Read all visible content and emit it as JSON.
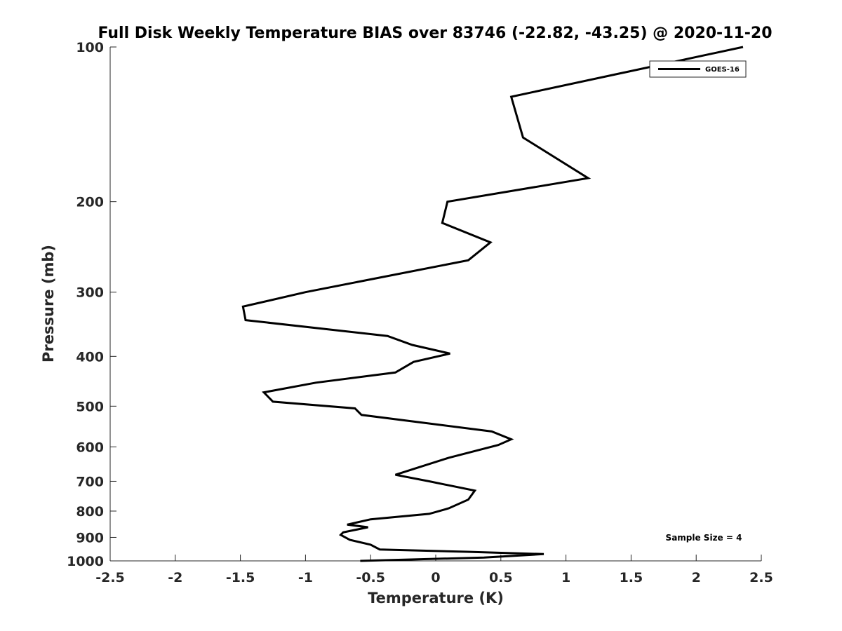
{
  "chart_data": {
    "type": "line",
    "title": "Full Disk Weekly Temperature BIAS over 83746 (-22.82, -43.25) @ 2020-11-20",
    "xlabel": "Temperature (K)",
    "ylabel": "Pressure (mb)",
    "xlim": [
      -2.5,
      2.5
    ],
    "ylim": [
      100,
      1000
    ],
    "y_scale": "log",
    "y_reversed": true,
    "x_ticks": [
      "-2.5",
      "-2",
      "-1.5",
      "-1",
      "-0.5",
      "0",
      "0.5",
      "1",
      "1.5",
      "2",
      "2.5"
    ],
    "x_tick_values": [
      -2.5,
      -2,
      -1.5,
      -1,
      -0.5,
      0,
      0.5,
      1,
      1.5,
      2,
      2.5
    ],
    "y_ticks": [
      "100",
      "200",
      "300",
      "400",
      "500",
      "600",
      "700",
      "800",
      "900",
      "1000"
    ],
    "y_tick_values": [
      100,
      200,
      300,
      400,
      500,
      600,
      700,
      800,
      900,
      1000
    ],
    "grid": false,
    "legend_position": "top-right",
    "annotation": "Sample Size = 4",
    "series": [
      {
        "name": "GOES-16",
        "color": "#000000",
        "points": [
          [
            2.36,
            100
          ],
          [
            0.58,
            125
          ],
          [
            0.67,
            150
          ],
          [
            1.17,
            180
          ],
          [
            0.09,
            200
          ],
          [
            0.05,
            220
          ],
          [
            0.42,
            240
          ],
          [
            0.25,
            260
          ],
          [
            -1.0,
            300
          ],
          [
            -1.48,
            320
          ],
          [
            -1.46,
            340
          ],
          [
            -0.37,
            365
          ],
          [
            -0.18,
            380
          ],
          [
            0.11,
            395
          ],
          [
            -0.17,
            410
          ],
          [
            -0.31,
            430
          ],
          [
            -0.92,
            450
          ],
          [
            -1.32,
            470
          ],
          [
            -1.25,
            490
          ],
          [
            -0.62,
            505
          ],
          [
            -0.57,
            520
          ],
          [
            0.43,
            560
          ],
          [
            0.58,
            580
          ],
          [
            0.48,
            595
          ],
          [
            0.1,
            630
          ],
          [
            -0.15,
            660
          ],
          [
            -0.31,
            680
          ],
          [
            -0.05,
            700
          ],
          [
            0.3,
            730
          ],
          [
            0.25,
            760
          ],
          [
            0.1,
            790
          ],
          [
            -0.05,
            810
          ],
          [
            -0.5,
            830
          ],
          [
            -0.68,
            850
          ],
          [
            -0.52,
            860
          ],
          [
            -0.71,
            880
          ],
          [
            -0.73,
            890
          ],
          [
            -0.66,
            910
          ],
          [
            -0.5,
            930
          ],
          [
            -0.43,
            950
          ],
          [
            0.24,
            960
          ],
          [
            0.83,
            970
          ],
          [
            0.37,
            985
          ],
          [
            -0.58,
            1000
          ]
        ]
      }
    ]
  }
}
